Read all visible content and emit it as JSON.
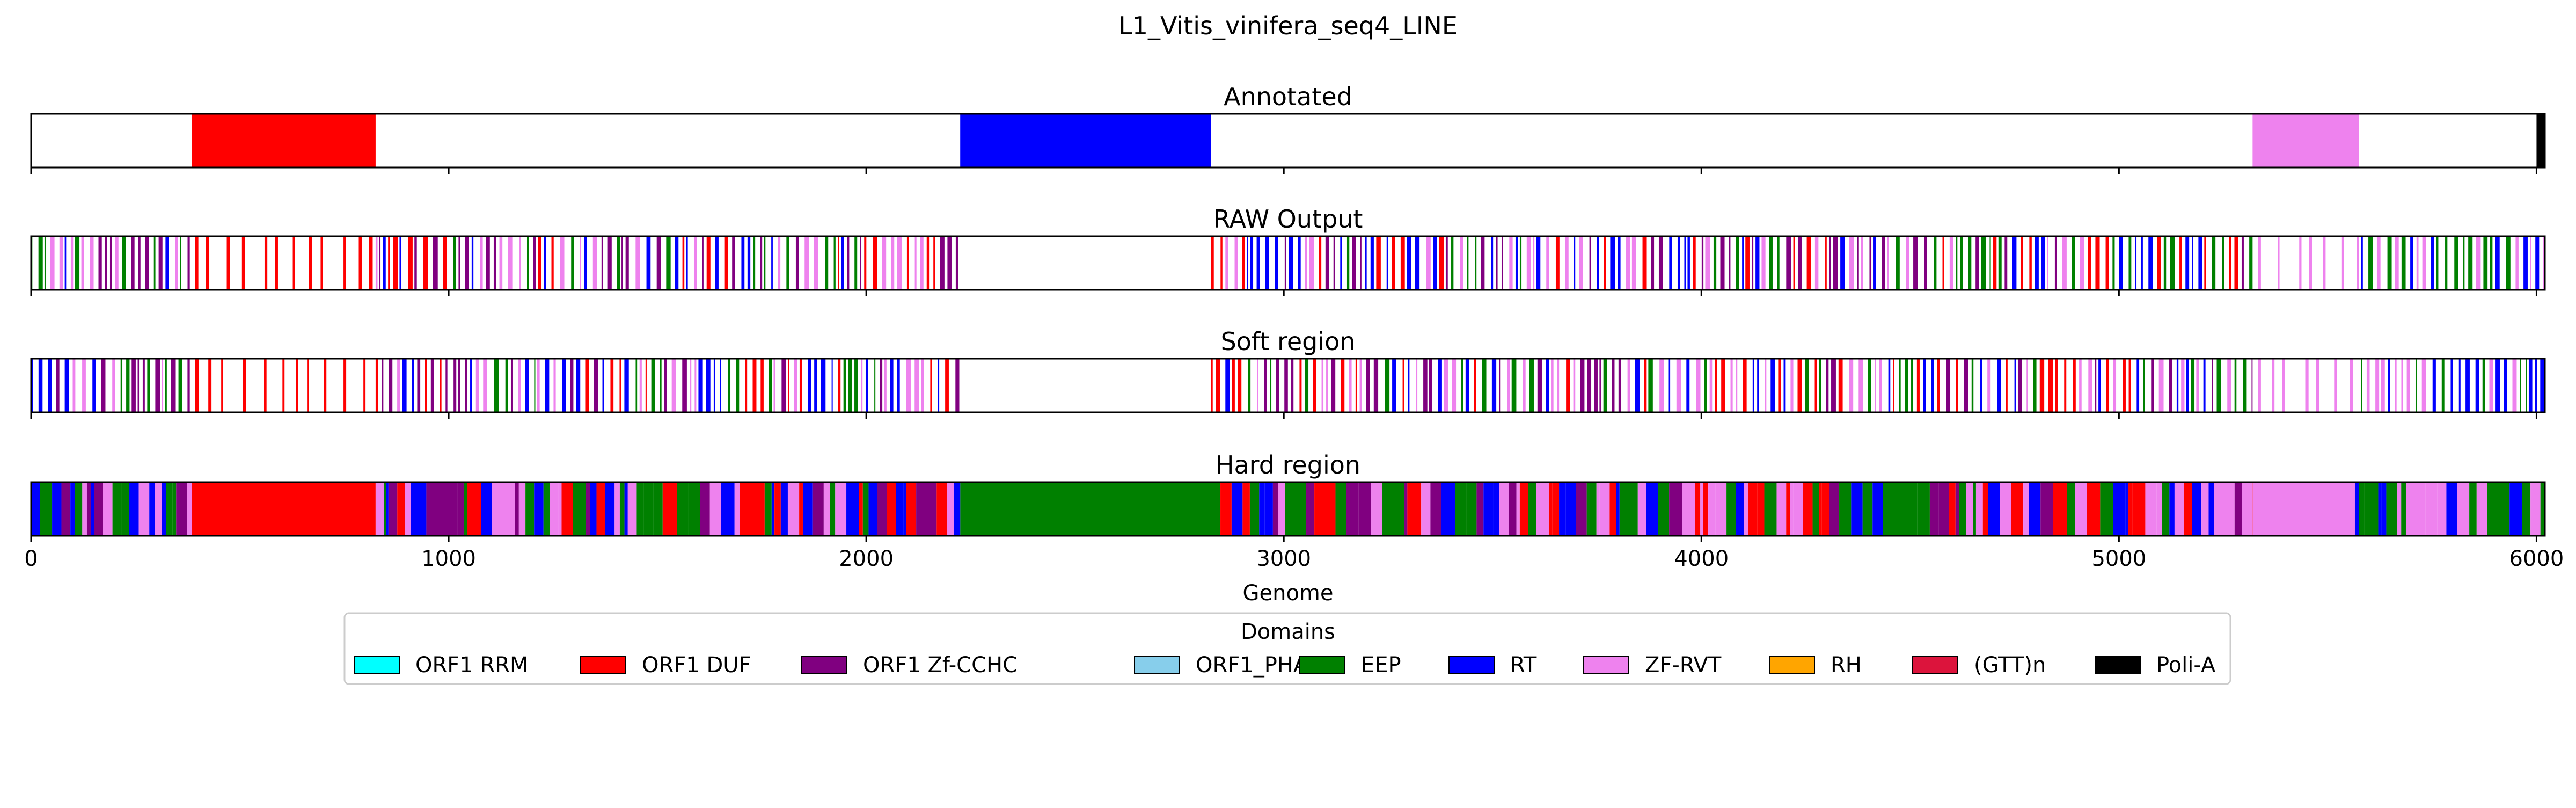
{
  "chart_data": {
    "type": "genome-track",
    "title": "L1_Vitis_vinifera_seq4_LINE",
    "xlabel": "Genome",
    "xlim": [
      0,
      6020
    ],
    "xticks": [
      0,
      1000,
      2000,
      3000,
      4000,
      5000,
      6000
    ],
    "xtick_labels": [
      "0",
      "1000",
      "2000",
      "3000",
      "4000",
      "5000",
      "6000"
    ],
    "legend": {
      "title": "Domains",
      "placement": "bottom-center",
      "entries": [
        {
          "name": "ORF1 RRM",
          "color": "#00ffff"
        },
        {
          "name": "ORF1 DUF",
          "color": "#ff0000"
        },
        {
          "name": "ORF1 Zf-CCHC",
          "color": "#800080"
        },
        {
          "name": "ORF1_PHA",
          "color": "#87ceeb"
        },
        {
          "name": "EEP",
          "color": "#008000"
        },
        {
          "name": "RT",
          "color": "#0000ff"
        },
        {
          "name": "ZF-RVT",
          "color": "#ee82ee"
        },
        {
          "name": "RH",
          "color": "#ffa500"
        },
        {
          "name": "(GTT)n",
          "color": "#dc143c"
        },
        {
          "name": "Poli-A",
          "color": "#000000"
        }
      ]
    },
    "tracks": [
      {
        "title": "Annotated",
        "segments": [
          {
            "domain": "ORF1 DUF",
            "start": 385,
            "end": 825
          },
          {
            "domain": "RT",
            "start": 2225,
            "end": 2825
          },
          {
            "domain": "ZF-RVT",
            "start": 5320,
            "end": 5575
          },
          {
            "domain": "Poli-A",
            "start": 6000,
            "end": 6020
          }
        ]
      },
      {
        "title": "RAW Output",
        "pattern": "sparse",
        "regions": [
          {
            "start": 0,
            "end": 380,
            "domains": [
              "RT",
              "EEP",
              "ORF1 Zf-CCHC",
              "ZF-RVT"
            ]
          },
          {
            "start": 380,
            "end": 825,
            "domains": [
              "ORF1 DUF"
            ]
          },
          {
            "start": 825,
            "end": 2225,
            "domains": [
              "RT",
              "EEP",
              "ORF1 Zf-CCHC",
              "ZF-RVT",
              "ORF1 DUF"
            ]
          },
          {
            "start": 2825,
            "end": 2860,
            "domains": [
              "ORF1 DUF"
            ]
          },
          {
            "start": 2860,
            "end": 5320,
            "domains": [
              "RT",
              "EEP",
              "ORF1 DUF",
              "ZF-RVT",
              "ORF1 Zf-CCHC"
            ]
          },
          {
            "start": 5320,
            "end": 5580,
            "domains": [
              "ZF-RVT"
            ]
          },
          {
            "start": 5580,
            "end": 6020,
            "domains": [
              "RT",
              "EEP",
              "ZF-RVT"
            ]
          }
        ]
      },
      {
        "title": "Soft region",
        "pattern": "sparse",
        "regions": [
          {
            "start": 0,
            "end": 380,
            "domains": [
              "RT",
              "EEP",
              "ORF1 Zf-CCHC",
              "ZF-RVT"
            ]
          },
          {
            "start": 380,
            "end": 825,
            "domains": [
              "ORF1 DUF"
            ]
          },
          {
            "start": 825,
            "end": 2225,
            "domains": [
              "RT",
              "EEP",
              "ORF1 Zf-CCHC",
              "ZF-RVT",
              "ORF1 DUF"
            ]
          },
          {
            "start": 2825,
            "end": 2860,
            "domains": [
              "ORF1 DUF"
            ]
          },
          {
            "start": 2860,
            "end": 5320,
            "domains": [
              "RT",
              "EEP",
              "ORF1 DUF",
              "ZF-RVT",
              "ORF1 Zf-CCHC"
            ]
          },
          {
            "start": 5320,
            "end": 5580,
            "domains": [
              "ZF-RVT"
            ]
          },
          {
            "start": 5580,
            "end": 6020,
            "domains": [
              "RT",
              "EEP",
              "ZF-RVT"
            ]
          }
        ]
      },
      {
        "title": "Hard region",
        "pattern": "dense",
        "segments": [
          {
            "domain": "ORF1 DUF",
            "start": 385,
            "end": 825
          },
          {
            "domain": "EEP",
            "start": 2225,
            "end": 2825
          },
          {
            "domain": "ZF-RVT",
            "start": 5320,
            "end": 5565
          }
        ],
        "regions": [
          {
            "start": 0,
            "end": 385,
            "domains": [
              "RT",
              "EEP",
              "ORF1 Zf-CCHC",
              "ZF-RVT"
            ]
          },
          {
            "start": 825,
            "end": 2225,
            "domains": [
              "RT",
              "EEP",
              "ORF1 Zf-CCHC",
              "ZF-RVT",
              "ORF1 DUF"
            ]
          },
          {
            "start": 2825,
            "end": 5320,
            "domains": [
              "RT",
              "EEP",
              "ORF1 DUF",
              "ZF-RVT",
              "ORF1 Zf-CCHC"
            ]
          },
          {
            "start": 5565,
            "end": 6020,
            "domains": [
              "RT",
              "EEP",
              "ZF-RVT"
            ]
          }
        ]
      }
    ]
  }
}
